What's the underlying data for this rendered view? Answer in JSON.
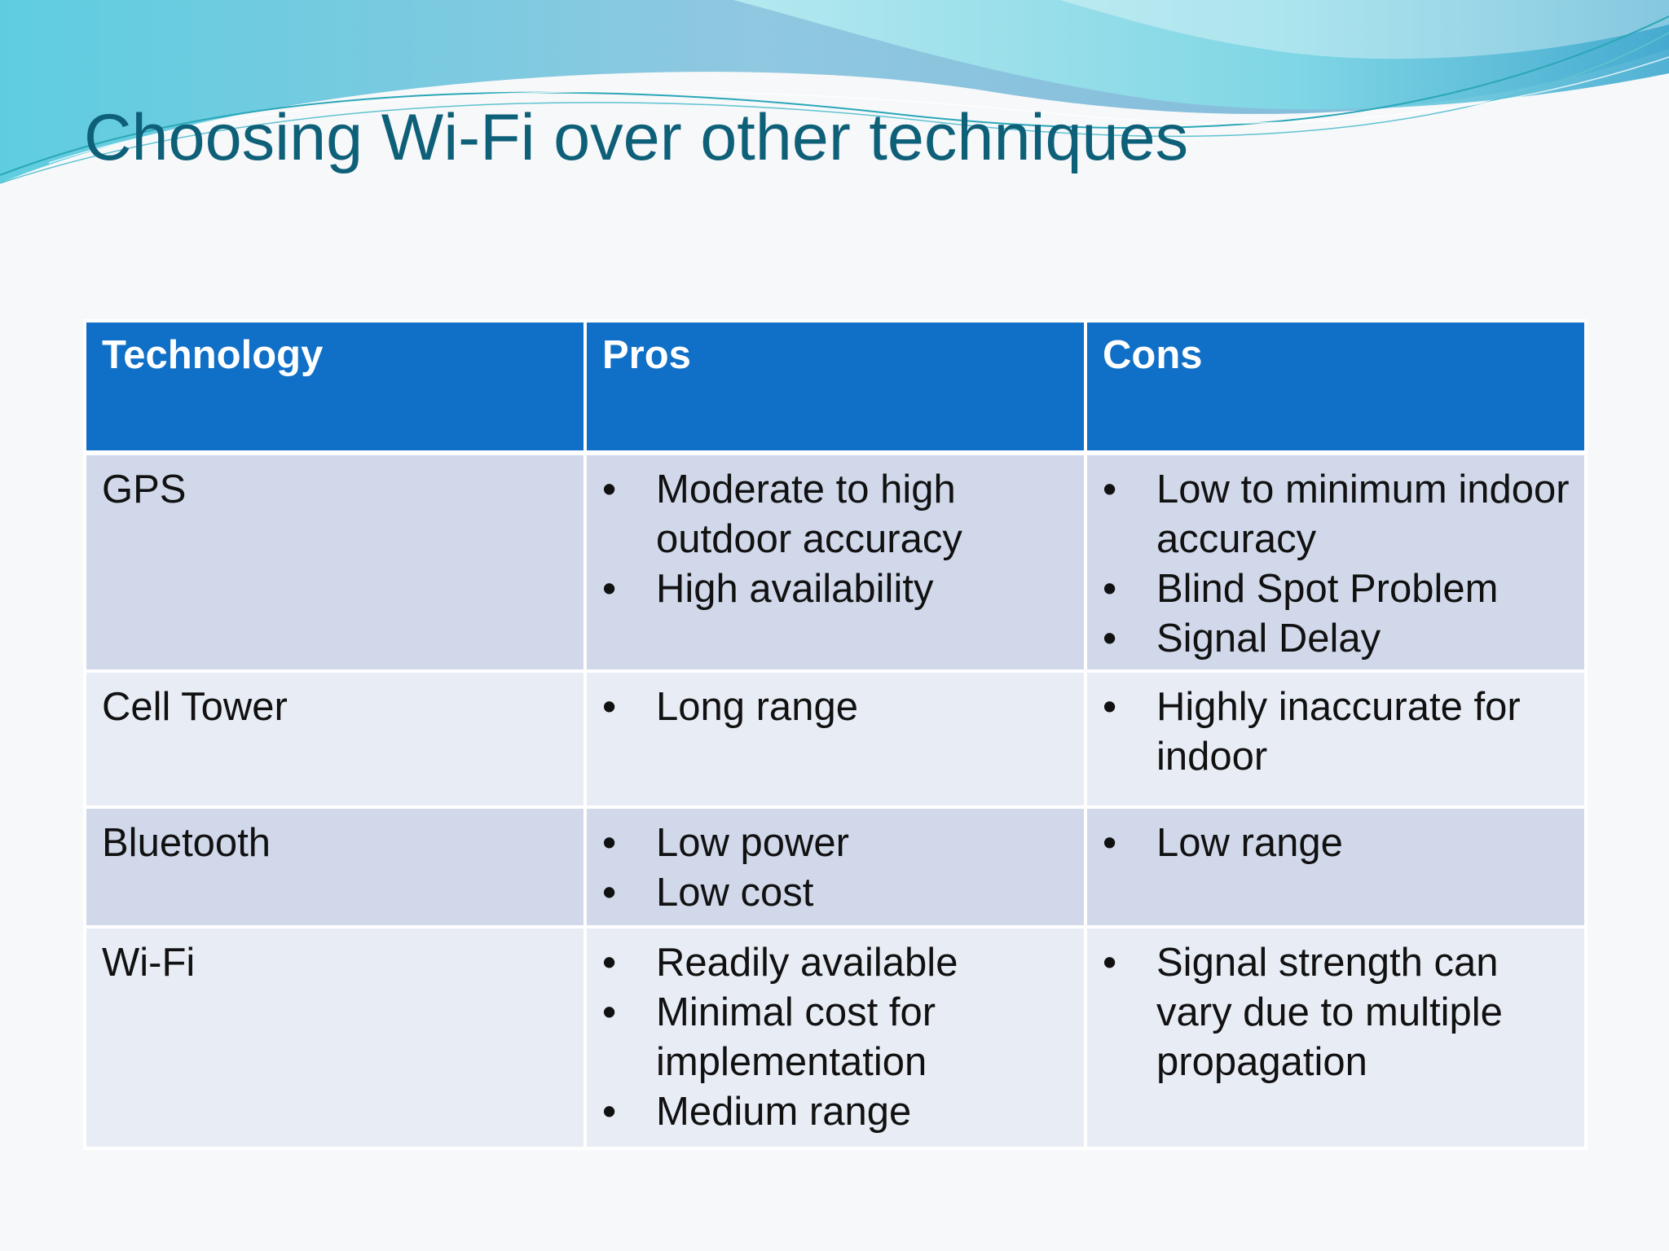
{
  "slide": {
    "title": "Choosing Wi-Fi over other techniques"
  },
  "theme": {
    "title_color": "#0e6079",
    "header_bg": "#106fc6",
    "row_dark": "#d0d8ea",
    "row_light": "#e8ecf5"
  },
  "table": {
    "headers": [
      "Technology",
      "Pros",
      "Cons"
    ],
    "bullet_glyph": "•",
    "rows": [
      {
        "technology": "GPS",
        "pros": [
          "Moderate to high outdoor accuracy",
          "High availability"
        ],
        "cons": [
          "Low to minimum indoor accuracy",
          "Blind Spot Problem",
          "Signal Delay"
        ]
      },
      {
        "technology": "Cell Tower",
        "pros": [
          "Long range"
        ],
        "cons": [
          "Highly inaccurate for indoor"
        ]
      },
      {
        "technology": "Bluetooth",
        "pros": [
          "Low power",
          "Low cost"
        ],
        "cons": [
          "Low range"
        ]
      },
      {
        "technology": "Wi-Fi",
        "pros": [
          "Readily available",
          "Minimal cost for implementation",
          "Medium range"
        ],
        "cons": [
          "Signal strength can vary due to multiple propagation"
        ]
      }
    ]
  }
}
